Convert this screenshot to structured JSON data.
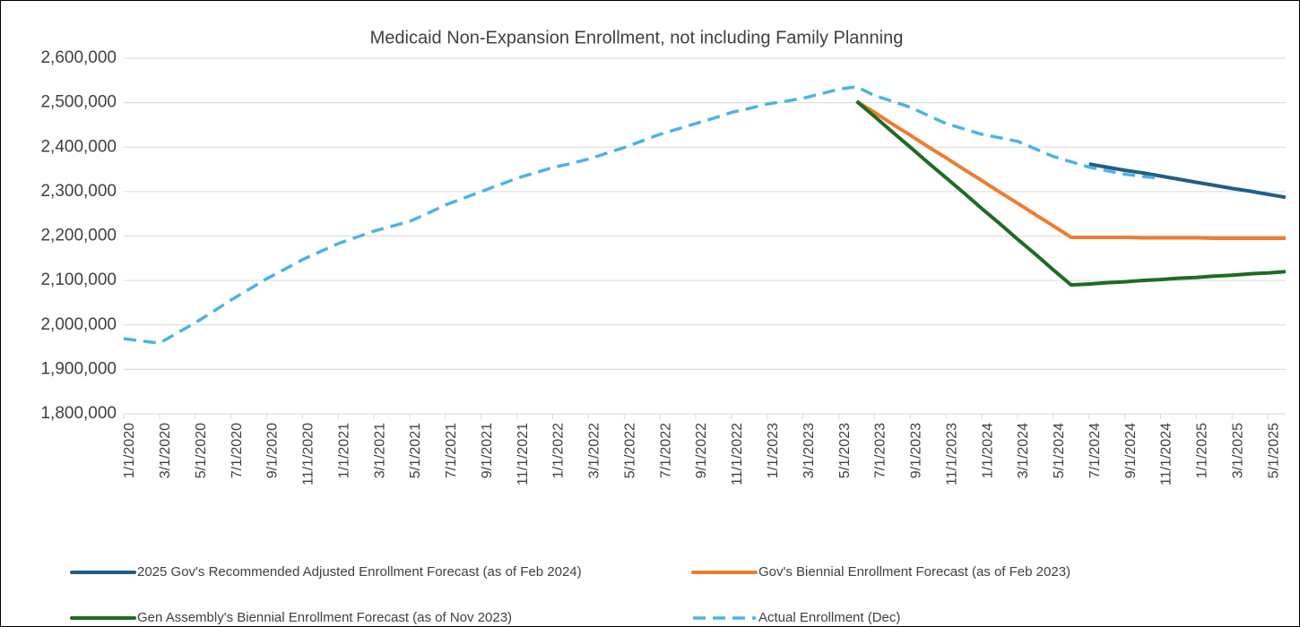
{
  "chart_data": {
    "type": "line",
    "title": "Medicaid Non-Expansion Enrollment, not including Family Planning",
    "categories": [
      "1/1/2020",
      null,
      "3/1/2020",
      null,
      "5/1/2020",
      null,
      "7/1/2020",
      null,
      "9/1/2020",
      null,
      "11/1/2020",
      null,
      "1/1/2021",
      null,
      "3/1/2021",
      null,
      "5/1/2021",
      null,
      "7/1/2021",
      null,
      "9/1/2021",
      null,
      "11/1/2021",
      null,
      "1/1/2022",
      null,
      "3/1/2022",
      null,
      "5/1/2022",
      null,
      "7/1/2022",
      null,
      "9/1/2022",
      null,
      "11/1/2022",
      null,
      "1/1/2023",
      null,
      "3/1/2023",
      null,
      "5/1/2023",
      null,
      "7/1/2023",
      null,
      "9/1/2023",
      null,
      "11/1/2023",
      null,
      "1/1/2024",
      null,
      "3/1/2024",
      null,
      "5/1/2024",
      null,
      "7/1/2024",
      null,
      "9/1/2024",
      null,
      "11/1/2024",
      null,
      "1/1/2025",
      null,
      "3/1/2025",
      null,
      "5/1/2025",
      null
    ],
    "series": [
      {
        "name": "2025 Gov's Recommended Adjusted Enrollment Forecast (as of Feb 2024)",
        "color": "#1f5f87",
        "values": [
          null,
          null,
          null,
          null,
          null,
          null,
          null,
          null,
          null,
          null,
          null,
          null,
          null,
          null,
          null,
          null,
          null,
          null,
          null,
          null,
          null,
          null,
          null,
          null,
          null,
          null,
          null,
          null,
          null,
          null,
          null,
          null,
          null,
          null,
          null,
          null,
          null,
          null,
          null,
          null,
          null,
          null,
          null,
          null,
          null,
          null,
          null,
          null,
          null,
          null,
          null,
          null,
          null,
          null,
          2362000,
          2355000,
          2348000,
          2342000,
          2335000,
          2328000,
          2321000,
          2314000,
          2307000,
          2301000,
          2294000,
          2287000
        ]
      },
      {
        "name": "Gov's Biennial Enrollment Forecast (as of Feb 2023)",
        "color": "#ed7d31",
        "values": [
          null,
          null,
          null,
          null,
          null,
          null,
          null,
          null,
          null,
          null,
          null,
          null,
          null,
          null,
          null,
          null,
          null,
          null,
          null,
          null,
          null,
          null,
          null,
          null,
          null,
          null,
          null,
          null,
          null,
          null,
          null,
          null,
          null,
          null,
          null,
          null,
          null,
          null,
          null,
          null,
          null,
          2503000,
          2478000,
          2452000,
          2427000,
          2401000,
          2376000,
          2350000,
          2325000,
          2299000,
          2274000,
          2248000,
          2223000,
          2197000,
          2197000,
          2197000,
          2197000,
          2196000,
          2196000,
          2196000,
          2196000,
          2195000,
          2195000,
          2195000,
          2195000,
          2195000
        ]
      },
      {
        "name": "Gen Assembly's Biennial Enrollment Forecast (as of Nov 2023)",
        "color": "#1e6b24",
        "values": [
          null,
          null,
          null,
          null,
          null,
          null,
          null,
          null,
          null,
          null,
          null,
          null,
          null,
          null,
          null,
          null,
          null,
          null,
          null,
          null,
          null,
          null,
          null,
          null,
          null,
          null,
          null,
          null,
          null,
          null,
          null,
          null,
          null,
          null,
          null,
          null,
          null,
          null,
          null,
          null,
          null,
          2503000,
          2469000,
          2434000,
          2400000,
          2365000,
          2331000,
          2297000,
          2262000,
          2228000,
          2193000,
          2159000,
          2124000,
          2090000,
          2092000,
          2095000,
          2097000,
          2100000,
          2102000,
          2105000,
          2107000,
          2110000,
          2112000,
          2115000,
          2117000,
          2120000
        ]
      },
      {
        "name": "Actual Enrollment (Dec)",
        "color": "#4cb3e6",
        "dashed": true,
        "values": [
          1969000,
          1964000,
          1959000,
          1982000,
          2005000,
          2030000,
          2056000,
          2080000,
          2104000,
          2125000,
          2147000,
          2165000,
          2183000,
          2197000,
          2211000,
          2222000,
          2233000,
          2251000,
          2270000,
          2285000,
          2300000,
          2315000,
          2330000,
          2342000,
          2354000,
          2363000,
          2373000,
          2386000,
          2399000,
          2414000,
          2429000,
          2441000,
          2453000,
          2465000,
          2478000,
          2487000,
          2497000,
          2503000,
          2510000,
          2520000,
          2530000,
          2536000,
          2516000,
          2503000,
          2490000,
          2471000,
          2453000,
          2441000,
          2429000,
          2421000,
          2413000,
          2396000,
          2379000,
          2367000,
          2355000,
          2347000,
          2339000,
          2334000,
          2330000,
          null,
          null,
          null,
          null,
          null,
          null,
          null
        ]
      }
    ],
    "ylim": [
      1800000,
      2600000
    ],
    "yticks": [
      {
        "value": 1800000,
        "label": "1,800,000"
      },
      {
        "value": 1900000,
        "label": "1,900,000"
      },
      {
        "value": 2000000,
        "label": "2,000,000"
      },
      {
        "value": 2100000,
        "label": "2,100,000"
      },
      {
        "value": 2200000,
        "label": "2,200,000"
      },
      {
        "value": 2300000,
        "label": "2,300,000"
      },
      {
        "value": 2400000,
        "label": "2,400,000"
      },
      {
        "value": 2500000,
        "label": "2,500,000"
      },
      {
        "value": 2600000,
        "label": "2,600,000"
      }
    ],
    "grid": true,
    "legend": "bottom"
  }
}
